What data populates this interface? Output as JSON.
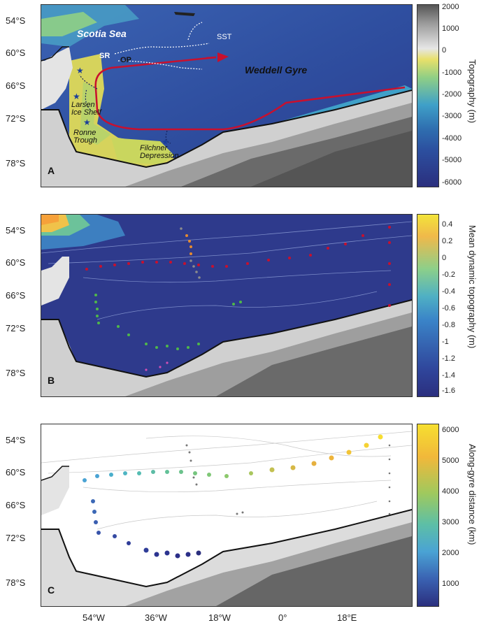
{
  "colors": {
    "ocean_deep": "#2b3c8f",
    "ocean_mid": "#2f6fb0",
    "shelf": "#d6d35c",
    "land_light": "#d9d9d9",
    "land_dark": "#555555",
    "gyre_arrow": "#c8102e",
    "mdt_deep": "#2e3a8c"
  },
  "lat_labels": [
    "54°S",
    "60°S",
    "66°S",
    "72°S",
    "78°S"
  ],
  "lon_labels": [
    "54°W",
    "36°W",
    "18°W",
    "0°",
    "18°E"
  ],
  "panel_a": {
    "label": "A",
    "places": {
      "scotia": "Scotia Sea",
      "sst": "SST",
      "sr": "SR",
      "op": "OP",
      "weddell": "Weddell Gyre",
      "larsen": "Larsen\nIce Shelf",
      "ronne": "Ronne\nTrough",
      "filchner": "Filchner\nDepression"
    },
    "colorbar": {
      "title": "Topography (m)",
      "ticks": [
        "2000",
        "1000",
        "0",
        "-1000",
        "-2000",
        "-3000",
        "-4000",
        "-5000",
        "-6000"
      ]
    }
  },
  "panel_b": {
    "label": "B",
    "colorbar": {
      "title": "Mean dynamic topography (m)",
      "ticks": [
        "0.4",
        "0.2",
        "0",
        "-0.2",
        "-0.4",
        "-0.6",
        "-0.8",
        "-1",
        "-1.2",
        "-1.4",
        "-1.6"
      ]
    }
  },
  "panel_c": {
    "label": "C",
    "colorbar": {
      "title": "Along-gyre distance (km)",
      "ticks": [
        "6000",
        "5000",
        "4000",
        "3000",
        "2000",
        "1000"
      ]
    }
  }
}
